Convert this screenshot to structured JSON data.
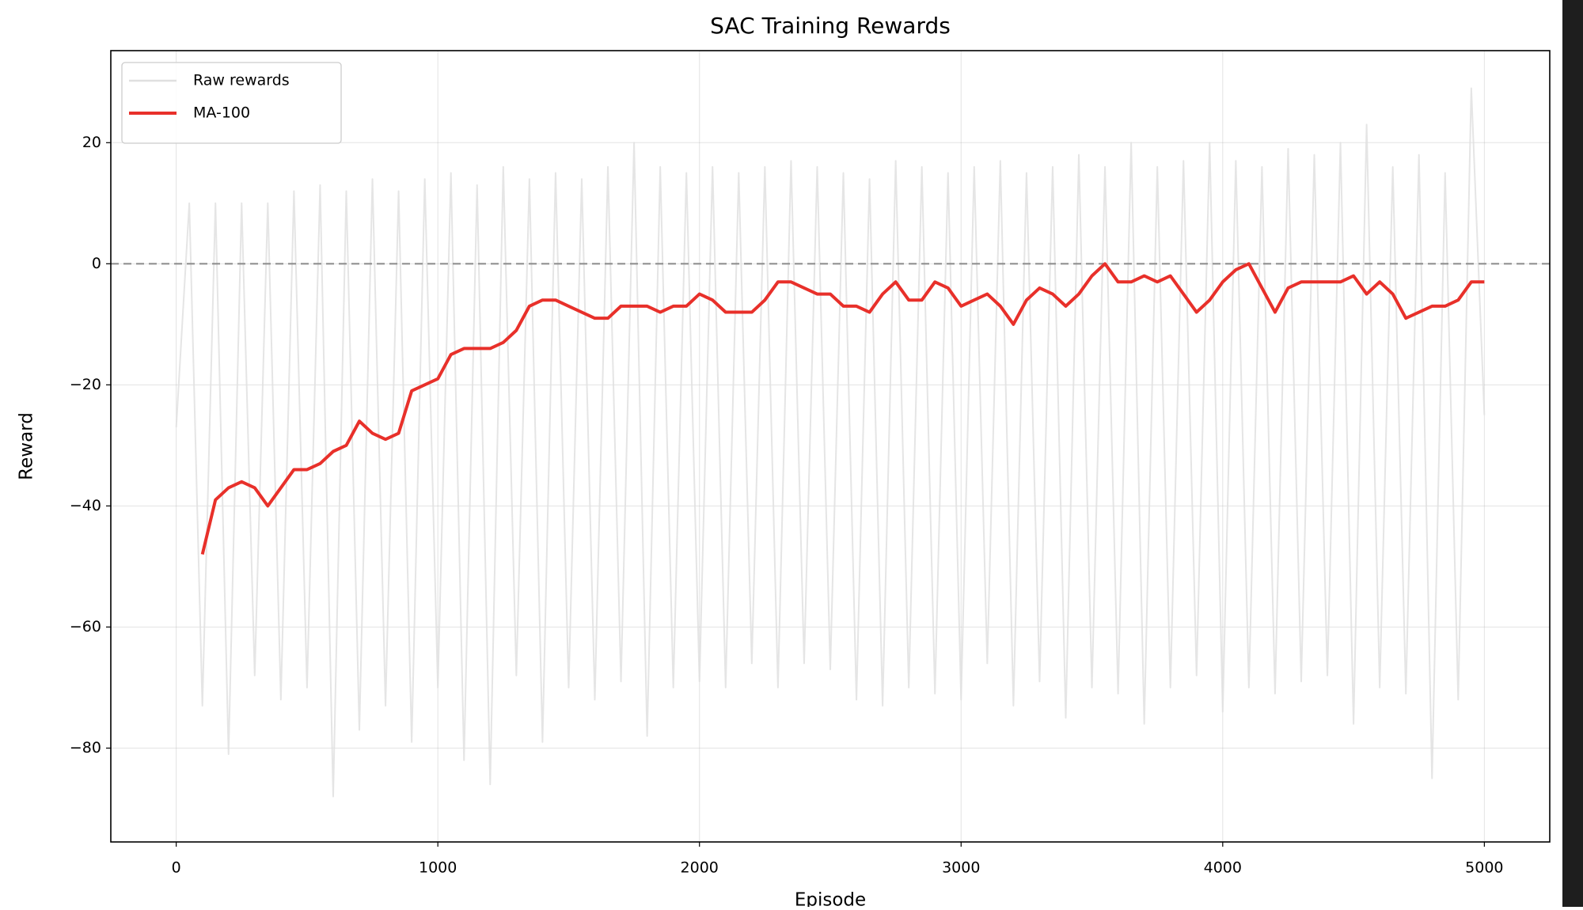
{
  "chart_data": {
    "type": "line",
    "title": "SAC Training Rewards",
    "x_label": "Episode",
    "y_label": "Reward",
    "x": [
      0,
      50,
      100,
      150,
      200,
      250,
      300,
      350,
      400,
      450,
      500,
      550,
      600,
      650,
      700,
      750,
      800,
      850,
      900,
      950,
      1000,
      1050,
      1100,
      1150,
      1200,
      1250,
      1300,
      1350,
      1400,
      1450,
      1500,
      1550,
      1600,
      1650,
      1700,
      1750,
      1800,
      1850,
      1900,
      1950,
      2000,
      2050,
      2100,
      2150,
      2200,
      2250,
      2300,
      2350,
      2400,
      2450,
      2500,
      2550,
      2600,
      2650,
      2700,
      2750,
      2800,
      2850,
      2900,
      2950,
      3000,
      3050,
      3100,
      3150,
      3200,
      3250,
      3300,
      3350,
      3400,
      3450,
      3500,
      3550,
      3600,
      3650,
      3700,
      3750,
      3800,
      3850,
      3900,
      3950,
      4000,
      4050,
      4100,
      4150,
      4200,
      4250,
      4300,
      4350,
      4400,
      4450,
      4500,
      4550,
      4600,
      4650,
      4700,
      4750,
      4800,
      4850,
      4900,
      4950,
      5000
    ],
    "series": [
      {
        "name": "Raw rewards",
        "color": "#e0e0e0",
        "values": [
          -27,
          10,
          -73,
          10,
          -81,
          10,
          -68,
          10,
          -72,
          12,
          -70,
          13,
          -88,
          12,
          -77,
          14,
          -73,
          12,
          -79,
          14,
          -70,
          15,
          -82,
          13,
          -86,
          16,
          -68,
          14,
          -79,
          15,
          -70,
          14,
          -72,
          16,
          -69,
          20,
          -78,
          16,
          -70,
          15,
          -69,
          16,
          -70,
          15,
          -66,
          16,
          -70,
          17,
          -66,
          16,
          -67,
          15,
          -72,
          14,
          -73,
          17,
          -70,
          16,
          -71,
          15,
          -72,
          16,
          -66,
          17,
          -73,
          15,
          -69,
          16,
          -75,
          18,
          -70,
          16,
          -71,
          20,
          -76,
          16,
          -70,
          17,
          -68,
          20,
          -74,
          17,
          -70,
          16,
          -71,
          19,
          -69,
          18,
          -68,
          20,
          -76,
          23,
          -70,
          16,
          -71,
          18,
          -85,
          15,
          -72,
          29,
          -25
        ]
      },
      {
        "name": "MA-100",
        "color": "#e8302a",
        "values": [
          null,
          null,
          -48,
          -39,
          -37,
          -36,
          -37,
          -40,
          -37,
          -34,
          -34,
          -33,
          -31,
          -30,
          -26,
          -28,
          -29,
          -28,
          -21,
          -20,
          -19,
          -15,
          -14,
          -14,
          -14,
          -13,
          -11,
          -7,
          -6,
          -6,
          -7,
          -8,
          -9,
          -9,
          -7,
          -7,
          -7,
          -8,
          -7,
          -7,
          -5,
          -6,
          -8,
          -8,
          -8,
          -6,
          -3,
          -3,
          -4,
          -5,
          -5,
          -7,
          -7,
          -8,
          -5,
          -3,
          -6,
          -6,
          -3,
          -4,
          -7,
          -6,
          -5,
          -7,
          -10,
          -6,
          -4,
          -5,
          -7,
          -5,
          -2,
          0,
          -3,
          -3,
          -2,
          -3,
          -2,
          -5,
          -8,
          -6,
          -3,
          -1,
          0,
          -4,
          -8,
          -4,
          -3,
          -3,
          -3,
          -3,
          -2,
          -5,
          -3,
          -5,
          -9,
          -8,
          -7,
          -7,
          -6,
          -3,
          -3
        ]
      }
    ],
    "xlim": [
      -250,
      5250
    ],
    "xticks": [
      0,
      1000,
      2000,
      3000,
      4000,
      5000
    ],
    "ylim": [
      -95.5,
      35.2
    ],
    "yticks": [
      {
        "value": -80,
        "label": "−80"
      },
      {
        "value": -60,
        "label": "−60"
      },
      {
        "value": -40,
        "label": "−40"
      },
      {
        "value": -20,
        "label": "−20"
      },
      0,
      20
    ],
    "hline": 0,
    "grid": true,
    "legend": "upper left"
  }
}
